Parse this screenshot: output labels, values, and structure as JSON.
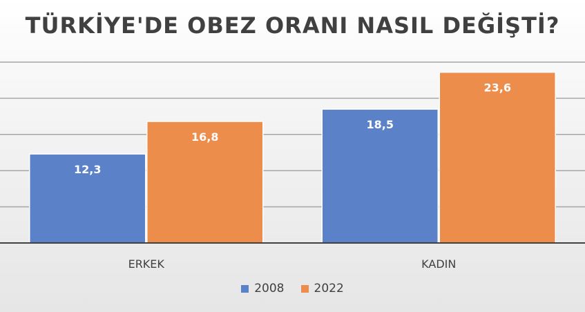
{
  "chart_data": {
    "type": "bar",
    "title": "TÜRKİYE'DE OBEZ ORANI NASIL DEĞİŞTİ?",
    "categories": [
      "ERKEK",
      "KADIN"
    ],
    "series": [
      {
        "name": "2008",
        "values": [
          12.3,
          18.5
        ],
        "labels": [
          "12,3",
          "18,5"
        ],
        "color": "#5B82C9"
      },
      {
        "name": "2022",
        "values": [
          16.8,
          23.6
        ],
        "labels": [
          "16,8",
          "23,6"
        ],
        "color": "#ED8D4C"
      }
    ],
    "ylim": [
      0,
      25
    ],
    "grid": true,
    "legend_position": "bottom"
  }
}
